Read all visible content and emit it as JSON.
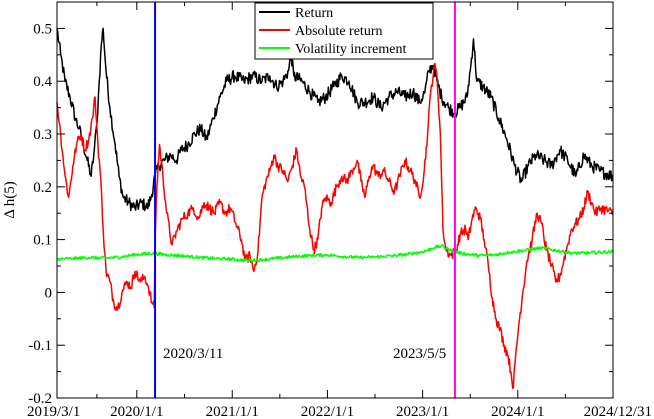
{
  "chart_data": {
    "type": "line",
    "ylabel": "Δ h(5)",
    "xlabel": "",
    "xlim": [
      "2019-03-01",
      "2024-12-31"
    ],
    "ylim": [
      -0.2,
      0.55
    ],
    "x_ticks": [
      "2019/3/1",
      "2020/1/1",
      "2021/1/1",
      "2022/1/1",
      "2023/1/1",
      "2024/1/1",
      "2024/12/31"
    ],
    "y_ticks": [
      -0.2,
      -0.1,
      0,
      0.1,
      0.2,
      0.3,
      0.4,
      0.5
    ],
    "y_tick_labels": [
      "-0.2",
      "-0.1",
      "0",
      "0.1",
      "0.2",
      "0.3",
      "0.4",
      "0.5"
    ],
    "grid": false,
    "legend_position": "top-center",
    "series": [
      {
        "name": "Return",
        "color": "#000000",
        "points": [
          [
            "2019-03-01",
            0.5
          ],
          [
            "2019-03-15",
            0.45
          ],
          [
            "2019-04-01",
            0.4
          ],
          [
            "2019-04-20",
            0.37
          ],
          [
            "2019-05-10",
            0.33
          ],
          [
            "2019-05-25",
            0.31
          ],
          [
            "2019-06-10",
            0.28
          ],
          [
            "2019-06-25",
            0.25
          ],
          [
            "2019-07-10",
            0.22
          ],
          [
            "2019-07-20",
            0.26
          ],
          [
            "2019-08-01",
            0.32
          ],
          [
            "2019-08-10",
            0.4
          ],
          [
            "2019-08-18",
            0.47
          ],
          [
            "2019-08-25",
            0.5
          ],
          [
            "2019-09-05",
            0.42
          ],
          [
            "2019-09-20",
            0.35
          ],
          [
            "2019-10-10",
            0.28
          ],
          [
            "2019-10-25",
            0.22
          ],
          [
            "2019-11-10",
            0.18
          ],
          [
            "2019-12-01",
            0.17
          ],
          [
            "2019-12-25",
            0.16
          ],
          [
            "2020-01-20",
            0.17
          ],
          [
            "2020-02-10",
            0.16
          ],
          [
            "2020-02-25",
            0.18
          ],
          [
            "2020-03-11",
            0.22
          ],
          [
            "2020-03-25",
            0.24
          ],
          [
            "2020-04-15",
            0.25
          ],
          [
            "2020-05-10",
            0.26
          ],
          [
            "2020-06-01",
            0.25
          ],
          [
            "2020-06-20",
            0.27
          ],
          [
            "2020-07-15",
            0.28
          ],
          [
            "2020-08-10",
            0.3
          ],
          [
            "2020-09-01",
            0.31
          ],
          [
            "2020-09-25",
            0.29
          ],
          [
            "2020-10-20",
            0.33
          ],
          [
            "2020-11-15",
            0.37
          ],
          [
            "2020-12-10",
            0.4
          ],
          [
            "2021-01-10",
            0.41
          ],
          [
            "2021-02-15",
            0.4
          ],
          [
            "2021-03-20",
            0.41
          ],
          [
            "2021-04-25",
            0.4
          ],
          [
            "2021-05-25",
            0.41
          ],
          [
            "2021-06-20",
            0.39
          ],
          [
            "2021-07-15",
            0.4
          ],
          [
            "2021-08-05",
            0.42
          ],
          [
            "2021-08-15",
            0.45
          ],
          [
            "2021-08-25",
            0.41
          ],
          [
            "2021-09-25",
            0.4
          ],
          [
            "2021-10-25",
            0.38
          ],
          [
            "2021-11-25",
            0.36
          ],
          [
            "2021-12-25",
            0.37
          ],
          [
            "2022-01-25",
            0.39
          ],
          [
            "2022-02-25",
            0.41
          ],
          [
            "2022-03-25",
            0.4
          ],
          [
            "2022-04-25",
            0.36
          ],
          [
            "2022-05-25",
            0.36
          ],
          [
            "2022-06-25",
            0.37
          ],
          [
            "2022-07-25",
            0.35
          ],
          [
            "2022-08-25",
            0.37
          ],
          [
            "2022-09-25",
            0.38
          ],
          [
            "2022-10-25",
            0.37
          ],
          [
            "2022-11-25",
            0.38
          ],
          [
            "2022-12-20",
            0.36
          ],
          [
            "2023-01-10",
            0.38
          ],
          [
            "2023-01-25",
            0.42
          ],
          [
            "2023-02-10",
            0.43
          ],
          [
            "2023-02-25",
            0.4
          ],
          [
            "2023-03-15",
            0.37
          ],
          [
            "2023-04-10",
            0.35
          ],
          [
            "2023-05-05",
            0.34
          ],
          [
            "2023-05-25",
            0.35
          ],
          [
            "2023-06-20",
            0.37
          ],
          [
            "2023-07-05",
            0.43
          ],
          [
            "2023-07-15",
            0.48
          ],
          [
            "2023-07-28",
            0.4
          ],
          [
            "2023-08-20",
            0.39
          ],
          [
            "2023-09-20",
            0.37
          ],
          [
            "2023-10-20",
            0.33
          ],
          [
            "2023-11-20",
            0.29
          ],
          [
            "2023-12-20",
            0.24
          ],
          [
            "2024-01-15",
            0.21
          ],
          [
            "2024-02-10",
            0.24
          ],
          [
            "2024-03-10",
            0.26
          ],
          [
            "2024-04-10",
            0.25
          ],
          [
            "2024-05-10",
            0.24
          ],
          [
            "2024-06-10",
            0.27
          ],
          [
            "2024-07-10",
            0.25
          ],
          [
            "2024-08-10",
            0.22
          ],
          [
            "2024-09-10",
            0.26
          ],
          [
            "2024-10-10",
            0.24
          ],
          [
            "2024-11-10",
            0.23
          ],
          [
            "2024-12-31",
            0.22
          ]
        ]
      },
      {
        "name": "Absolute return",
        "color": "#ff0000",
        "points": [
          [
            "2019-03-01",
            0.36
          ],
          [
            "2019-03-15",
            0.3
          ],
          [
            "2019-04-01",
            0.22
          ],
          [
            "2019-04-15",
            0.18
          ],
          [
            "2019-05-01",
            0.24
          ],
          [
            "2019-05-15",
            0.28
          ],
          [
            "2019-06-01",
            0.3
          ],
          [
            "2019-06-15",
            0.27
          ],
          [
            "2019-07-01",
            0.29
          ],
          [
            "2019-07-15",
            0.33
          ],
          [
            "2019-07-25",
            0.37
          ],
          [
            "2019-08-05",
            0.28
          ],
          [
            "2019-08-15",
            0.22
          ],
          [
            "2019-08-25",
            0.12
          ],
          [
            "2019-09-05",
            0.04
          ],
          [
            "2019-09-20",
            0.02
          ],
          [
            "2019-10-05",
            -0.02
          ],
          [
            "2019-10-20",
            -0.03
          ],
          [
            "2019-11-05",
            0.0
          ],
          [
            "2019-11-25",
            0.02
          ],
          [
            "2019-12-10",
            0.01
          ],
          [
            "2019-12-25",
            0.04
          ],
          [
            "2020-01-15",
            0.02
          ],
          [
            "2020-02-01",
            0.03
          ],
          [
            "2020-02-15",
            0.01
          ],
          [
            "2020-02-28",
            -0.02
          ],
          [
            "2020-03-08",
            -0.03
          ],
          [
            "2020-03-11",
            0.1
          ],
          [
            "2020-03-18",
            0.2
          ],
          [
            "2020-03-28",
            0.28
          ],
          [
            "2020-04-10",
            0.22
          ],
          [
            "2020-04-25",
            0.15
          ],
          [
            "2020-05-15",
            0.09
          ],
          [
            "2020-06-05",
            0.12
          ],
          [
            "2020-06-25",
            0.14
          ],
          [
            "2020-07-15",
            0.15
          ],
          [
            "2020-08-05",
            0.16
          ],
          [
            "2020-08-25",
            0.14
          ],
          [
            "2020-09-15",
            0.17
          ],
          [
            "2020-10-05",
            0.16
          ],
          [
            "2020-10-25",
            0.15
          ],
          [
            "2020-11-15",
            0.17
          ],
          [
            "2020-12-05",
            0.15
          ],
          [
            "2020-12-25",
            0.16
          ],
          [
            "2021-01-15",
            0.13
          ],
          [
            "2021-02-05",
            0.1
          ],
          [
            "2021-02-20",
            0.06
          ],
          [
            "2021-03-10",
            0.07
          ],
          [
            "2021-03-25",
            0.04
          ],
          [
            "2021-04-10",
            0.08
          ],
          [
            "2021-04-25",
            0.18
          ],
          [
            "2021-05-10",
            0.21
          ],
          [
            "2021-05-25",
            0.23
          ],
          [
            "2021-06-10",
            0.26
          ],
          [
            "2021-06-25",
            0.24
          ],
          [
            "2021-07-15",
            0.23
          ],
          [
            "2021-08-01",
            0.21
          ],
          [
            "2021-08-20",
            0.24
          ],
          [
            "2021-09-05",
            0.27
          ],
          [
            "2021-09-20",
            0.22
          ],
          [
            "2021-10-05",
            0.2
          ],
          [
            "2021-10-25",
            0.12
          ],
          [
            "2021-11-10",
            0.08
          ],
          [
            "2021-11-25",
            0.1
          ],
          [
            "2021-12-10",
            0.16
          ],
          [
            "2021-12-25",
            0.18
          ],
          [
            "2022-01-15",
            0.17
          ],
          [
            "2022-02-05",
            0.2
          ],
          [
            "2022-02-25",
            0.22
          ],
          [
            "2022-03-15",
            0.21
          ],
          [
            "2022-04-05",
            0.23
          ],
          [
            "2022-04-25",
            0.25
          ],
          [
            "2022-05-10",
            0.21
          ],
          [
            "2022-05-25",
            0.18
          ],
          [
            "2022-06-10",
            0.22
          ],
          [
            "2022-06-25",
            0.24
          ],
          [
            "2022-07-15",
            0.22
          ],
          [
            "2022-08-05",
            0.23
          ],
          [
            "2022-08-25",
            0.21
          ],
          [
            "2022-09-15",
            0.19
          ],
          [
            "2022-10-05",
            0.22
          ],
          [
            "2022-10-25",
            0.25
          ],
          [
            "2022-11-15",
            0.23
          ],
          [
            "2022-12-05",
            0.21
          ],
          [
            "2022-12-20",
            0.18
          ],
          [
            "2023-01-05",
            0.22
          ],
          [
            "2023-01-20",
            0.3
          ],
          [
            "2023-02-01",
            0.38
          ],
          [
            "2023-02-15",
            0.43
          ],
          [
            "2023-02-25",
            0.41
          ],
          [
            "2023-03-10",
            0.3
          ],
          [
            "2023-03-20",
            0.12
          ],
          [
            "2023-04-01",
            0.08
          ],
          [
            "2023-04-20",
            0.07
          ],
          [
            "2023-05-10",
            0.08
          ],
          [
            "2023-05-25",
            0.11
          ],
          [
            "2023-06-15",
            0.12
          ],
          [
            "2023-06-25",
            0.1
          ],
          [
            "2023-07-10",
            0.14
          ],
          [
            "2023-07-25",
            0.16
          ],
          [
            "2023-08-10",
            0.14
          ],
          [
            "2023-08-25",
            0.1
          ],
          [
            "2023-09-10",
            0.05
          ],
          [
            "2023-09-25",
            -0.01
          ],
          [
            "2023-10-10",
            -0.05
          ],
          [
            "2023-10-25",
            -0.07
          ],
          [
            "2023-11-10",
            -0.1
          ],
          [
            "2023-11-25",
            -0.12
          ],
          [
            "2023-12-05",
            -0.15
          ],
          [
            "2023-12-15",
            -0.18
          ],
          [
            "2023-12-22",
            -0.13
          ],
          [
            "2024-01-05",
            -0.06
          ],
          [
            "2024-01-20",
            0.0
          ],
          [
            "2024-02-05",
            0.06
          ],
          [
            "2024-02-25",
            0.1
          ],
          [
            "2024-03-15",
            0.15
          ],
          [
            "2024-04-01",
            0.13
          ],
          [
            "2024-04-20",
            0.08
          ],
          [
            "2024-05-10",
            0.05
          ],
          [
            "2024-05-25",
            0.02
          ],
          [
            "2024-06-10",
            0.03
          ],
          [
            "2024-06-25",
            0.06
          ],
          [
            "2024-07-10",
            0.09
          ],
          [
            "2024-07-25",
            0.12
          ],
          [
            "2024-08-10",
            0.13
          ],
          [
            "2024-08-25",
            0.14
          ],
          [
            "2024-09-10",
            0.16
          ],
          [
            "2024-09-25",
            0.19
          ],
          [
            "2024-10-10",
            0.17
          ],
          [
            "2024-10-25",
            0.15
          ],
          [
            "2024-11-15",
            0.16
          ],
          [
            "2024-12-31",
            0.15
          ]
        ]
      },
      {
        "name": "Volatility increment",
        "color": "#00ff00",
        "points": [
          [
            "2019-03-01",
            0.063
          ],
          [
            "2019-05-01",
            0.064
          ],
          [
            "2019-07-01",
            0.066
          ],
          [
            "2019-09-01",
            0.065
          ],
          [
            "2019-11-01",
            0.067
          ],
          [
            "2020-01-01",
            0.072
          ],
          [
            "2020-03-01",
            0.074
          ],
          [
            "2020-05-01",
            0.071
          ],
          [
            "2020-07-01",
            0.069
          ],
          [
            "2020-09-01",
            0.066
          ],
          [
            "2020-11-01",
            0.064
          ],
          [
            "2021-01-01",
            0.063
          ],
          [
            "2021-03-01",
            0.06
          ],
          [
            "2021-05-01",
            0.062
          ],
          [
            "2021-07-01",
            0.065
          ],
          [
            "2021-09-01",
            0.068
          ],
          [
            "2021-11-01",
            0.07
          ],
          [
            "2022-01-01",
            0.071
          ],
          [
            "2022-03-01",
            0.068
          ],
          [
            "2022-05-01",
            0.066
          ],
          [
            "2022-07-01",
            0.067
          ],
          [
            "2022-09-01",
            0.069
          ],
          [
            "2022-11-01",
            0.072
          ],
          [
            "2023-01-01",
            0.077
          ],
          [
            "2023-02-15",
            0.085
          ],
          [
            "2023-03-15",
            0.088
          ],
          [
            "2023-04-15",
            0.08
          ],
          [
            "2023-06-01",
            0.074
          ],
          [
            "2023-08-01",
            0.07
          ],
          [
            "2023-10-01",
            0.071
          ],
          [
            "2023-12-01",
            0.076
          ],
          [
            "2024-02-01",
            0.08
          ],
          [
            "2024-04-01",
            0.084
          ],
          [
            "2024-06-01",
            0.079
          ],
          [
            "2024-08-01",
            0.074
          ],
          [
            "2024-10-01",
            0.075
          ],
          [
            "2024-12-31",
            0.077
          ]
        ]
      }
    ],
    "events": [
      {
        "date": "2020-03-11",
        "label": "2020/3/11",
        "color": "#0000ff"
      },
      {
        "date": "2023-05-05",
        "label": "2023/5/5",
        "color": "#ff00ff"
      }
    ]
  }
}
